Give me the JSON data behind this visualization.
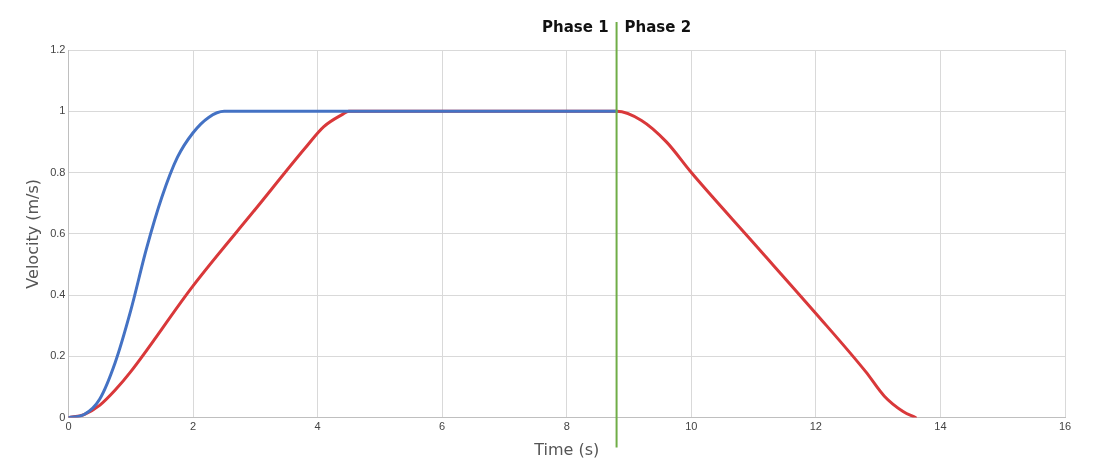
{
  "chart_data": {
    "type": "line",
    "xlabel": "Time (s)",
    "ylabel": "Velocity (m/s)",
    "xlim": [
      0,
      16
    ],
    "xticks": [
      0,
      2,
      4,
      6,
      8,
      10,
      12,
      14,
      16
    ],
    "ylim": [
      0,
      1.2
    ],
    "yticks": [
      0,
      0.2,
      0.4,
      0.6,
      0.8,
      1,
      1.2
    ],
    "grid": true,
    "legend": false,
    "marker": "none",
    "line_style": "solid",
    "series": [
      {
        "color": "#4472c4",
        "x": [
          0,
          0.25,
          0.5,
          0.75,
          1,
          1.25,
          1.5,
          1.75,
          2,
          2.25,
          2.5,
          8.8
        ],
        "values": [
          0,
          0.01,
          0.06,
          0.18,
          0.35,
          0.55,
          0.72,
          0.85,
          0.93,
          0.98,
          1,
          1
        ]
      },
      {
        "color": "#d9383a",
        "x": [
          0,
          0.25,
          0.5,
          0.75,
          1,
          2,
          3,
          3.8,
          4.1,
          4.4,
          4.5,
          8.8,
          9.2,
          9.6,
          10,
          11,
          12,
          12.8,
          13.1,
          13.4,
          13.6
        ],
        "values": [
          0,
          0.01,
          0.04,
          0.09,
          0.15,
          0.43,
          0.68,
          0.88,
          0.95,
          0.99,
          1,
          1,
          0.97,
          0.9,
          0.8,
          0.57,
          0.34,
          0.15,
          0.07,
          0.02,
          0
        ]
      }
    ],
    "ref_lines": [
      {
        "axis": "x",
        "value": 8.8,
        "color": "#70ad47"
      }
    ],
    "annotations": [
      {
        "text": "Phase 1",
        "x": 8.8,
        "y": 1.2
      },
      {
        "text": "Phase 2",
        "x": 8.8,
        "y": 1.2
      }
    ]
  }
}
